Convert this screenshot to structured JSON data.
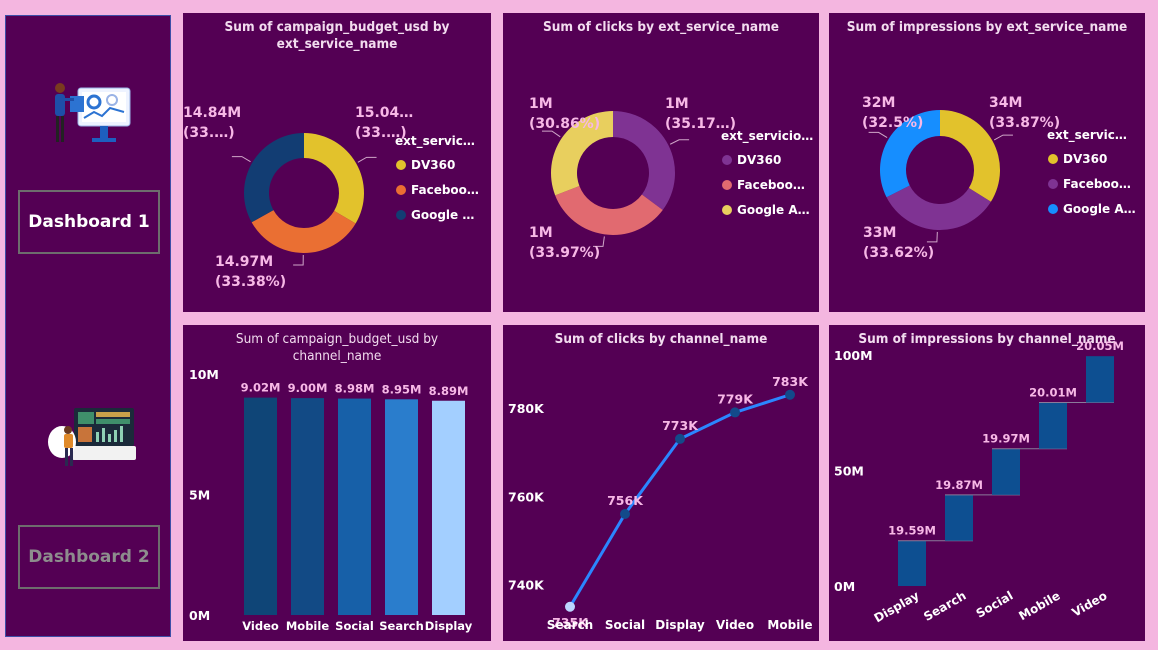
{
  "colors": {
    "page_bg": "#f4b6e0",
    "panel_bg": "#540054",
    "label": "#f7b8e6",
    "axis_text": "#ffffff",
    "yellow": "#e2c22c",
    "orange": "#ea6f33",
    "navy": "#123d73",
    "purple": "#7f3393",
    "salmon": "#e16a70",
    "lightyellow": "#e8cf5e",
    "blue": "#168eff",
    "line": "#2b86ff",
    "waterfall": "#0d4f91"
  },
  "sidebar": {
    "nav": [
      {
        "label": "Dashboard 1",
        "active": true
      },
      {
        "label": "Dashboard 2",
        "active": false
      }
    ],
    "illustrations": [
      "analytics-monitor-illustration",
      "dashboard-presenter-illustration"
    ]
  },
  "chart_data": [
    {
      "type": "pie",
      "title": "Sum of campaign_budget_usd by ext_service_name",
      "legend_title": "ext_servic…",
      "legend_placement": "right",
      "legend": [
        "DV360",
        "Faceboo…",
        "Google …"
      ],
      "slices": [
        {
          "name": "DV360",
          "value": 15.04,
          "percent": 33.5,
          "color": "#e2c22c",
          "label_value": "15.04…",
          "label_pct": "(33.…)"
        },
        {
          "name": "Facebook",
          "value": 14.97,
          "percent": 33.38,
          "color": "#ea6f33",
          "label_value": "14.97M",
          "label_pct": "(33.38%)"
        },
        {
          "name": "Google Ads",
          "value": 14.84,
          "percent": 33.12,
          "color": "#123d73",
          "label_value": "14.84M",
          "label_pct": "(33.…)"
        }
      ]
    },
    {
      "type": "pie",
      "title": "Sum of clicks by ext_service_name",
      "legend_title": "ext_servicio…",
      "legend_placement": "right",
      "legend": [
        "DV360",
        "Faceboo…",
        "Google A…"
      ],
      "slices": [
        {
          "name": "DV360",
          "value": 1,
          "percent": 35.17,
          "color": "#7f3393",
          "label_value": "1M",
          "label_pct": "(35.17…)"
        },
        {
          "name": "Facebook",
          "value": 1,
          "percent": 33.97,
          "color": "#e16a70",
          "label_value": "1M",
          "label_pct": "(33.97%)"
        },
        {
          "name": "Google Ads",
          "value": 1,
          "percent": 30.86,
          "color": "#e8cf5e",
          "label_value": "1M",
          "label_pct": "(30.86%)"
        }
      ]
    },
    {
      "type": "pie",
      "title": "Sum of impressions by ext_service_name",
      "legend_title": "ext_servic…",
      "legend_placement": "right",
      "legend": [
        "DV360",
        "Faceboo…",
        "Google A…"
      ],
      "slices": [
        {
          "name": "DV360",
          "value": 34,
          "percent": 33.87,
          "color": "#e2c22c",
          "label_value": "34M",
          "label_pct": "(33.87%)"
        },
        {
          "name": "Facebook",
          "value": 33,
          "percent": 33.62,
          "color": "#7f3393",
          "label_value": "33M",
          "label_pct": "(33.62%)"
        },
        {
          "name": "Google Ads",
          "value": 32,
          "percent": 32.5,
          "color": "#168eff",
          "label_value": "32M",
          "label_pct": "(32.5%)"
        }
      ]
    },
    {
      "type": "bar",
      "title": "Sum of campaign_budget_usd by channel_name",
      "categories": [
        "Video",
        "Mobile",
        "Social",
        "Search",
        "Display"
      ],
      "values": [
        9.02,
        9.0,
        8.98,
        8.95,
        8.89
      ],
      "data_labels": [
        "9.02M",
        "9.00M",
        "8.98M",
        "8.95M",
        "8.89M"
      ],
      "bar_colors": [
        "#0f4577",
        "#124a85",
        "#1760a8",
        "#2a7dcc",
        "#a3cfff"
      ],
      "ylim": [
        0,
        10
      ],
      "yticks": [
        0,
        5,
        10
      ],
      "ytick_labels": [
        "0M",
        "5M",
        "10M"
      ]
    },
    {
      "type": "line",
      "title": "Sum of clicks by channel_name",
      "categories": [
        "Search",
        "Social",
        "Display",
        "Video",
        "Mobile"
      ],
      "values": [
        735,
        756,
        773,
        779,
        783
      ],
      "data_labels": [
        "735K",
        "756K",
        "773K",
        "779K",
        "783K"
      ],
      "ylim": [
        732,
        792
      ],
      "yticks": [
        740,
        760,
        780
      ],
      "ytick_labels": [
        "740K",
        "760K",
        "780K"
      ]
    },
    {
      "type": "bar",
      "subtype": "waterfall",
      "title": "Sum of impressions by channel_name",
      "categories": [
        "Display",
        "Search",
        "Social",
        "Mobile",
        "Video"
      ],
      "values": [
        19.59,
        19.87,
        19.97,
        20.01,
        20.05
      ],
      "data_labels": [
        "19.59M",
        "19.87M",
        "19.97M",
        "20.01M",
        "20.05M"
      ],
      "ylim": [
        0,
        100
      ],
      "yticks": [
        0,
        50,
        100
      ],
      "ytick_labels": [
        "0M",
        "50M",
        "100M"
      ]
    }
  ]
}
